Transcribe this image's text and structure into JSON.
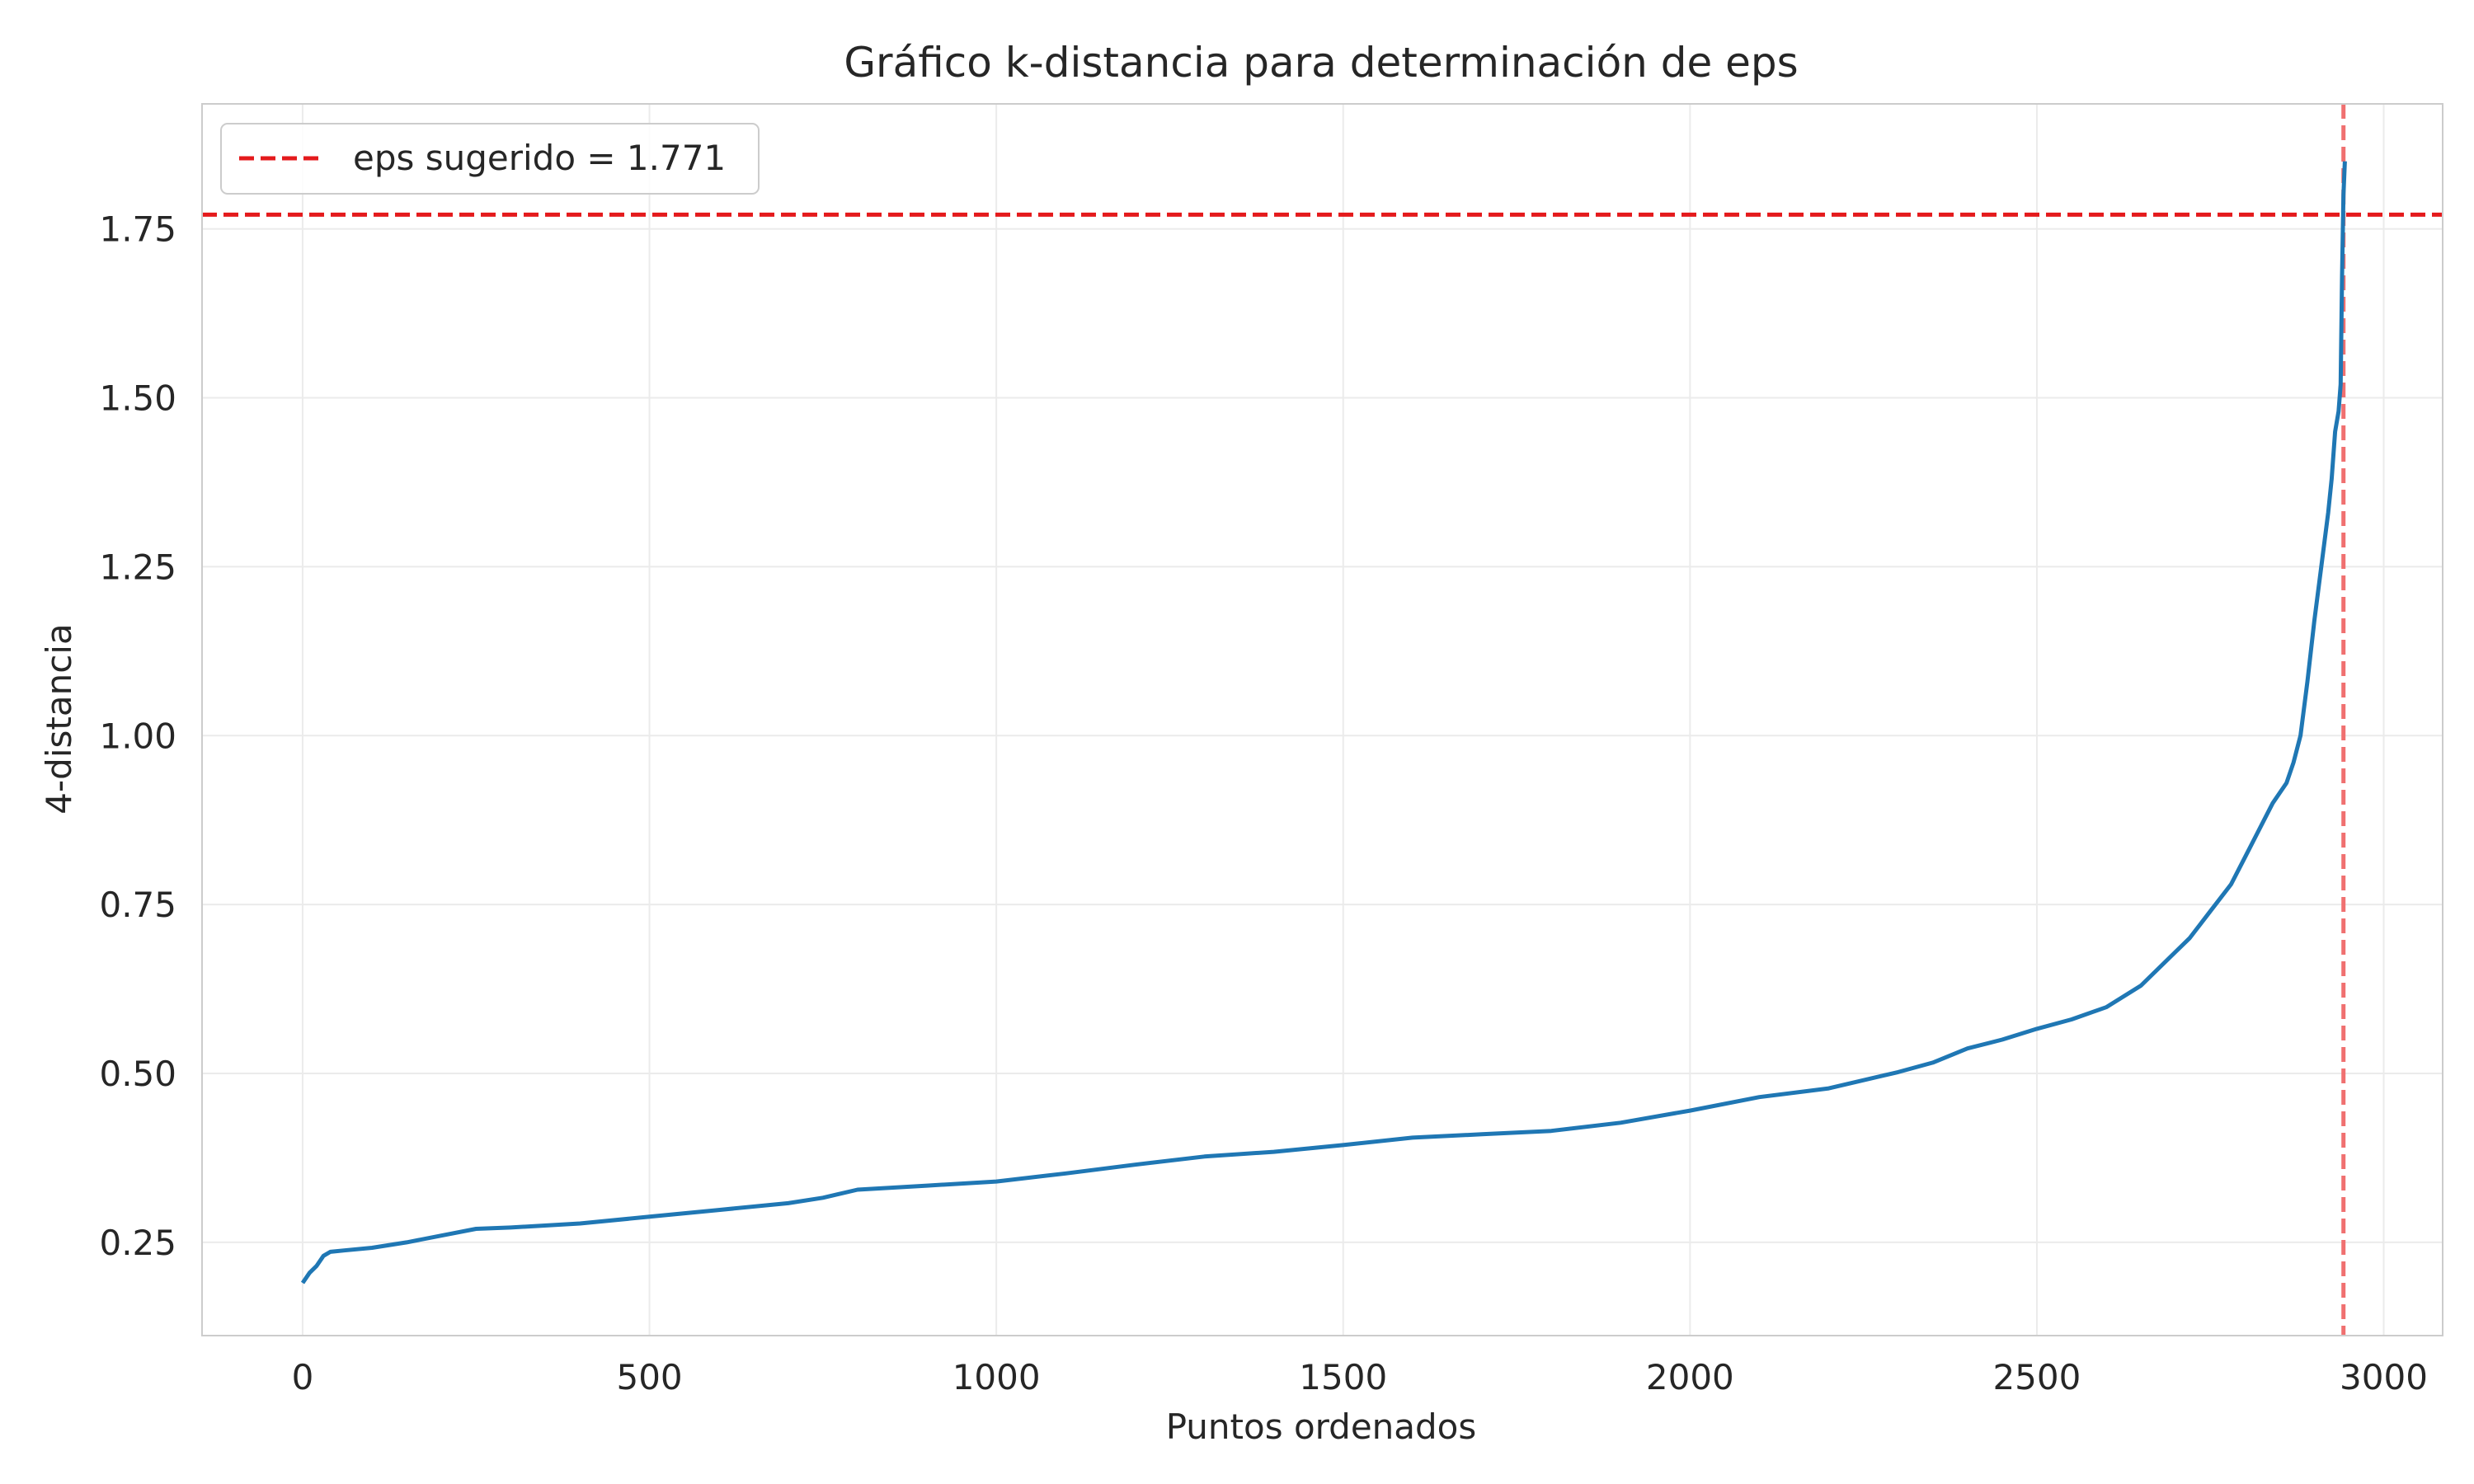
{
  "chart_data": {
    "type": "line",
    "title": "Gráfico k-distancia para determinación de eps",
    "xlabel": "Puntos ordenados",
    "ylabel": "4-distancia",
    "xlim": [
      -145,
      3085
    ],
    "ylim": [
      0.112,
      1.935
    ],
    "x_ticks": [
      0,
      500,
      1000,
      1500,
      2000,
      2500,
      3000
    ],
    "x_tick_labels": [
      "0",
      "500",
      "1000",
      "1500",
      "2000",
      "2500",
      "3000"
    ],
    "y_ticks": [
      0.25,
      0.5,
      0.75,
      1.0,
      1.25,
      1.5,
      1.75
    ],
    "y_tick_labels": [
      "0.25",
      "0.50",
      "0.75",
      "1.00",
      "1.25",
      "1.50",
      "1.75"
    ],
    "grid": true,
    "legend_position": "top-left",
    "series": [
      {
        "color": "#1f77b4",
        "x": [
          0,
          10,
          20,
          30,
          40,
          60,
          100,
          150,
          200,
          250,
          300,
          400,
          500,
          600,
          700,
          750,
          800,
          900,
          1000,
          1100,
          1200,
          1300,
          1400,
          1500,
          1600,
          1700,
          1800,
          1900,
          2000,
          2100,
          2200,
          2300,
          2350,
          2400,
          2450,
          2500,
          2550,
          2600,
          2650,
          2700,
          2720,
          2750,
          2780,
          2800,
          2820,
          2840,
          2860,
          2870,
          2880,
          2890,
          2900,
          2910,
          2920,
          2925,
          2930,
          2935,
          2938,
          2940,
          2942,
          2944
        ],
        "y": [
          0.19,
          0.205,
          0.215,
          0.23,
          0.236,
          0.238,
          0.242,
          0.25,
          0.26,
          0.27,
          0.272,
          0.278,
          0.288,
          0.298,
          0.308,
          0.316,
          0.328,
          0.334,
          0.34,
          0.352,
          0.365,
          0.377,
          0.384,
          0.394,
          0.405,
          0.41,
          0.415,
          0.427,
          0.445,
          0.465,
          0.478,
          0.502,
          0.516,
          0.537,
          0.55,
          0.566,
          0.58,
          0.598,
          0.63,
          0.68,
          0.7,
          0.74,
          0.78,
          0.82,
          0.86,
          0.9,
          0.93,
          0.96,
          1.0,
          1.08,
          1.17,
          1.25,
          1.33,
          1.38,
          1.45,
          1.48,
          1.52,
          1.68,
          1.8,
          1.85
        ]
      }
    ],
    "eps_line": {
      "value": 1.771,
      "label": "eps sugerido = 1.771",
      "color": "#e41a1c"
    },
    "knee_line": {
      "x": 2942,
      "color": "#f07070"
    }
  }
}
